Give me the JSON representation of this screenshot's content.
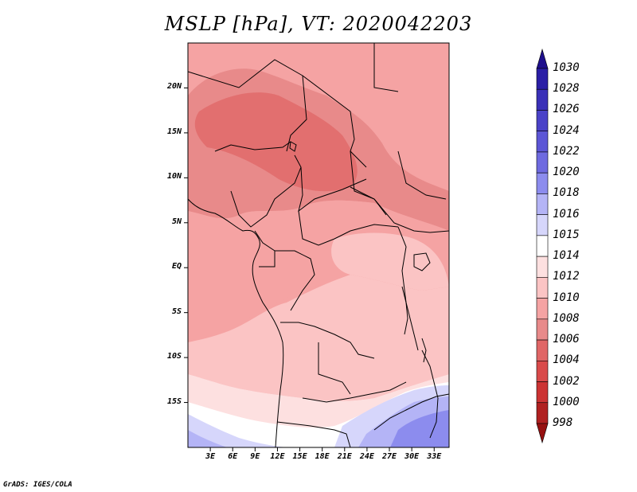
{
  "title": "MSLP [hPa], VT: 2020042203",
  "credit": "GrADS: IGES/COLA",
  "map": {
    "lon_range": [
      0,
      35
    ],
    "lat_range": [
      -20,
      25
    ],
    "lat_ticks": [
      "20N",
      "15N",
      "10N",
      "5N",
      "EQ",
      "5S",
      "10S",
      "15S"
    ],
    "lat_values": [
      20,
      15,
      10,
      5,
      0,
      -5,
      -10,
      -15
    ],
    "lon_ticks": [
      "3E",
      "6E",
      "9E",
      "12E",
      "15E",
      "18E",
      "21E",
      "24E",
      "27E",
      "30E",
      "33E"
    ],
    "lon_values": [
      3,
      6,
      9,
      12,
      15,
      18,
      21,
      24,
      27,
      30,
      33
    ]
  },
  "colorbar": {
    "levels": [
      "1030",
      "1028",
      "1026",
      "1024",
      "1022",
      "1020",
      "1018",
      "1016",
      "1015",
      "1014",
      "1012",
      "1010",
      "1008",
      "1006",
      "1004",
      "1002",
      "1000",
      "998"
    ],
    "colors": [
      "#1e0f8c",
      "#2a1ea6",
      "#3a30b8",
      "#4a42c8",
      "#5c56d6",
      "#6e6ae0",
      "#8c8cee",
      "#b4b4f6",
      "#d6d6fb",
      "#ffffff",
      "#fde0e0",
      "#fbc4c4",
      "#f5a3a3",
      "#e88a8a",
      "#e06666",
      "#d94a4a",
      "#cc3333",
      "#b02020",
      "#961010"
    ]
  }
}
